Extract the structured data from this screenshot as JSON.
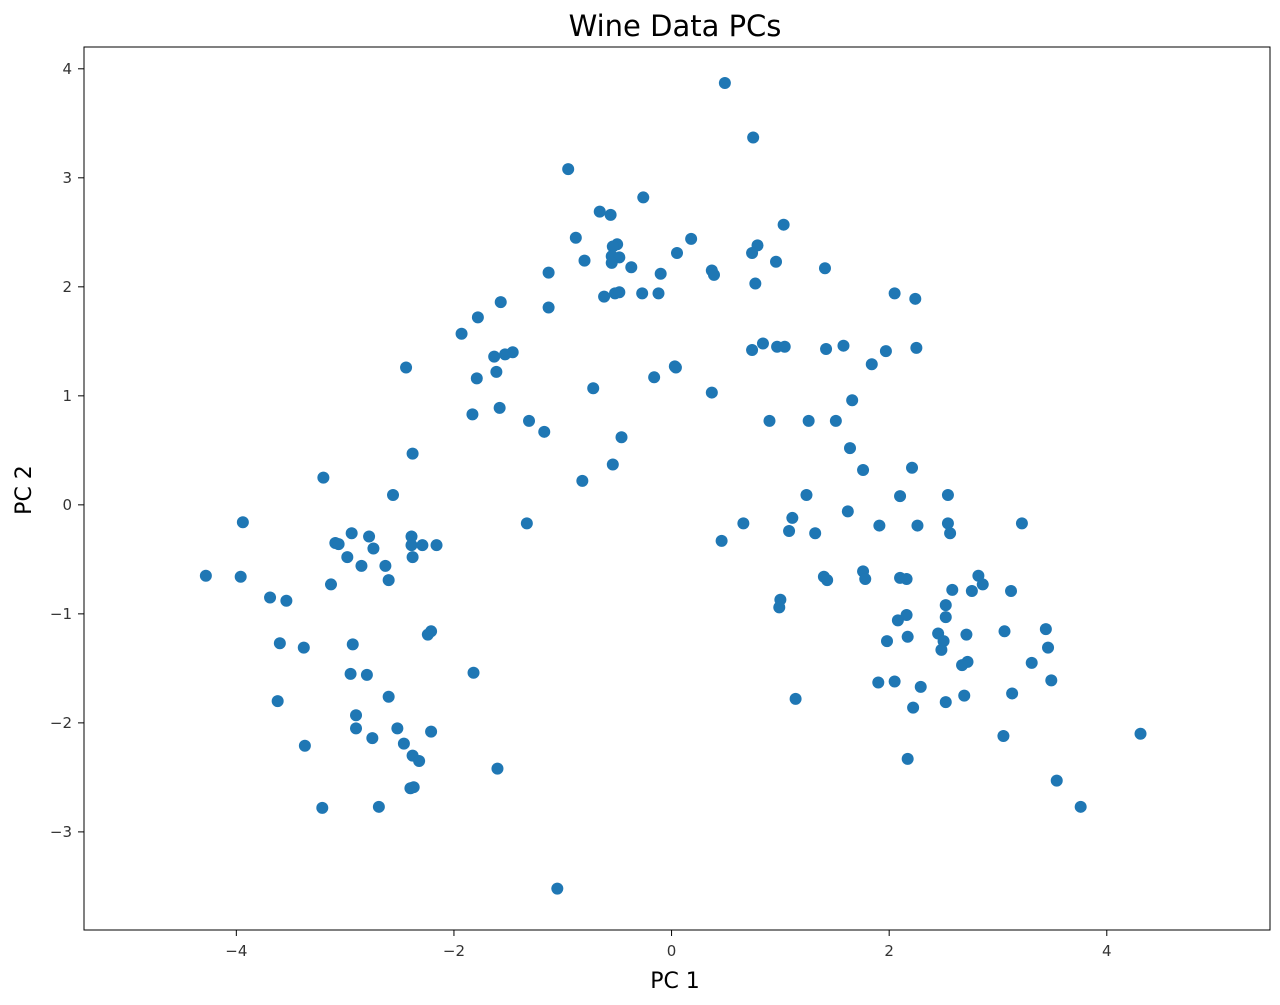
{
  "chart_data": {
    "type": "scatter",
    "title": "Wine Data PCs",
    "xlabel": "PC 1",
    "ylabel": "PC 2",
    "xlim": [
      -5.4,
      5.5
    ],
    "ylim": [
      -3.9,
      4.2
    ],
    "xticks": [
      -4,
      -2,
      0,
      2,
      4
    ],
    "yticks": [
      -3,
      -2,
      -1,
      0,
      1,
      2,
      3,
      4
    ],
    "xtick_labels": [
      "−4",
      "−2",
      "0",
      "2",
      "4"
    ],
    "ytick_labels": [
      "−3",
      "−2",
      "−1",
      "0",
      "1",
      "2",
      "3",
      "4"
    ],
    "grid": false,
    "marker_color": "#1f77b4",
    "points": [
      [
        0.49,
        3.87
      ],
      [
        0.75,
        3.37
      ],
      [
        -0.95,
        3.08
      ],
      [
        -0.26,
        2.82
      ],
      [
        -0.66,
        2.69
      ],
      [
        -0.56,
        2.66
      ],
      [
        1.03,
        2.57
      ],
      [
        -0.88,
        2.45
      ],
      [
        0.18,
        2.44
      ],
      [
        -0.5,
        2.39
      ],
      [
        0.79,
        2.38
      ],
      [
        -0.54,
        2.37
      ],
      [
        0.74,
        2.31
      ],
      [
        0.05,
        2.31
      ],
      [
        -0.55,
        2.28
      ],
      [
        -0.48,
        2.27
      ],
      [
        -0.8,
        2.24
      ],
      [
        -0.55,
        2.22
      ],
      [
        0.96,
        2.23
      ],
      [
        -0.37,
        2.18
      ],
      [
        1.41,
        2.17
      ],
      [
        0.37,
        2.15
      ],
      [
        -1.13,
        2.13
      ],
      [
        -0.1,
        2.12
      ],
      [
        0.39,
        2.11
      ],
      [
        0.77,
        2.03
      ],
      [
        -0.52,
        1.94
      ],
      [
        -0.48,
        1.95
      ],
      [
        -0.27,
        1.94
      ],
      [
        -0.12,
        1.94
      ],
      [
        -0.62,
        1.91
      ],
      [
        2.05,
        1.94
      ],
      [
        2.24,
        1.89
      ],
      [
        -1.57,
        1.86
      ],
      [
        -1.13,
        1.81
      ],
      [
        -1.78,
        1.72
      ],
      [
        -1.93,
        1.57
      ],
      [
        1.58,
        1.46
      ],
      [
        0.84,
        1.48
      ],
      [
        0.97,
        1.45
      ],
      [
        1.04,
        1.45
      ],
      [
        1.42,
        1.43
      ],
      [
        0.74,
        1.42
      ],
      [
        2.25,
        1.44
      ],
      [
        1.97,
        1.41
      ],
      [
        -1.46,
        1.4
      ],
      [
        -1.53,
        1.38
      ],
      [
        -1.63,
        1.36
      ],
      [
        1.84,
        1.29
      ],
      [
        -2.44,
        1.26
      ],
      [
        0.03,
        1.27
      ],
      [
        0.04,
        1.26
      ],
      [
        -1.61,
        1.22
      ],
      [
        -1.79,
        1.16
      ],
      [
        -0.16,
        1.17
      ],
      [
        -0.72,
        1.07
      ],
      [
        0.37,
        1.03
      ],
      [
        1.66,
        0.96
      ],
      [
        -1.58,
        0.89
      ],
      [
        -1.83,
        0.83
      ],
      [
        0.9,
        0.77
      ],
      [
        1.26,
        0.77
      ],
      [
        1.51,
        0.77
      ],
      [
        -1.31,
        0.77
      ],
      [
        -1.17,
        0.67
      ],
      [
        -0.46,
        0.62
      ],
      [
        1.64,
        0.52
      ],
      [
        -2.38,
        0.47
      ],
      [
        -0.54,
        0.37
      ],
      [
        2.21,
        0.34
      ],
      [
        1.76,
        0.32
      ],
      [
        -3.2,
        0.25
      ],
      [
        -0.82,
        0.22
      ],
      [
        -2.56,
        0.09
      ],
      [
        1.24,
        0.09
      ],
      [
        2.1,
        0.08
      ],
      [
        2.54,
        0.09
      ],
      [
        1.62,
        -0.06
      ],
      [
        1.11,
        -0.12
      ],
      [
        -3.94,
        -0.16
      ],
      [
        -1.33,
        -0.17
      ],
      [
        0.66,
        -0.17
      ],
      [
        1.91,
        -0.19
      ],
      [
        2.26,
        -0.19
      ],
      [
        2.54,
        -0.17
      ],
      [
        3.22,
        -0.17
      ],
      [
        1.08,
        -0.24
      ],
      [
        1.32,
        -0.26
      ],
      [
        2.56,
        -0.26
      ],
      [
        -2.94,
        -0.26
      ],
      [
        -2.78,
        -0.29
      ],
      [
        -2.39,
        -0.29
      ],
      [
        -3.09,
        -0.35
      ],
      [
        -3.06,
        -0.36
      ],
      [
        0.46,
        -0.33
      ],
      [
        -2.39,
        -0.37
      ],
      [
        -2.29,
        -0.37
      ],
      [
        -2.16,
        -0.37
      ],
      [
        -2.74,
        -0.4
      ],
      [
        -2.98,
        -0.48
      ],
      [
        -2.38,
        -0.48
      ],
      [
        -2.85,
        -0.56
      ],
      [
        -2.63,
        -0.56
      ],
      [
        -4.28,
        -0.65
      ],
      [
        -3.96,
        -0.66
      ],
      [
        1.76,
        -0.61
      ],
      [
        1.4,
        -0.66
      ],
      [
        1.43,
        -0.69
      ],
      [
        1.78,
        -0.68
      ],
      [
        2.1,
        -0.67
      ],
      [
        2.16,
        -0.68
      ],
      [
        2.82,
        -0.65
      ],
      [
        -2.6,
        -0.69
      ],
      [
        -3.13,
        -0.73
      ],
      [
        2.86,
        -0.73
      ],
      [
        2.58,
        -0.78
      ],
      [
        2.76,
        -0.79
      ],
      [
        3.12,
        -0.79
      ],
      [
        -3.69,
        -0.85
      ],
      [
        -3.54,
        -0.88
      ],
      [
        1.0,
        -0.87
      ],
      [
        0.99,
        -0.94
      ],
      [
        2.52,
        -0.92
      ],
      [
        2.16,
        -1.01
      ],
      [
        2.08,
        -1.06
      ],
      [
        2.52,
        -1.03
      ],
      [
        3.44,
        -1.14
      ],
      [
        3.06,
        -1.16
      ],
      [
        -2.21,
        -1.16
      ],
      [
        -2.24,
        -1.19
      ],
      [
        2.45,
        -1.18
      ],
      [
        2.71,
        -1.19
      ],
      [
        2.17,
        -1.21
      ],
      [
        1.98,
        -1.25
      ],
      [
        2.5,
        -1.25
      ],
      [
        -3.6,
        -1.27
      ],
      [
        -2.93,
        -1.28
      ],
      [
        -3.38,
        -1.31
      ],
      [
        3.46,
        -1.31
      ],
      [
        2.48,
        -1.33
      ],
      [
        2.72,
        -1.44
      ],
      [
        2.67,
        -1.47
      ],
      [
        3.31,
        -1.45
      ],
      [
        -1.82,
        -1.54
      ],
      [
        -2.95,
        -1.55
      ],
      [
        -2.8,
        -1.56
      ],
      [
        3.49,
        -1.61
      ],
      [
        1.9,
        -1.63
      ],
      [
        2.05,
        -1.62
      ],
      [
        2.29,
        -1.67
      ],
      [
        3.13,
        -1.73
      ],
      [
        -2.6,
        -1.76
      ],
      [
        2.69,
        -1.75
      ],
      [
        1.14,
        -1.78
      ],
      [
        -3.62,
        -1.8
      ],
      [
        2.52,
        -1.81
      ],
      [
        2.22,
        -1.86
      ],
      [
        -2.9,
        -1.93
      ],
      [
        -2.52,
        -2.05
      ],
      [
        -2.9,
        -2.05
      ],
      [
        -2.75,
        -2.14
      ],
      [
        -2.21,
        -2.08
      ],
      [
        3.05,
        -2.12
      ],
      [
        4.31,
        -2.1
      ],
      [
        -2.46,
        -2.19
      ],
      [
        -3.37,
        -2.21
      ],
      [
        -2.38,
        -2.3
      ],
      [
        -2.32,
        -2.35
      ],
      [
        2.17,
        -2.33
      ],
      [
        -1.6,
        -2.42
      ],
      [
        3.54,
        -2.53
      ],
      [
        -2.37,
        -2.59
      ],
      [
        -2.4,
        -2.6
      ],
      [
        -3.21,
        -2.78
      ],
      [
        -2.69,
        -2.77
      ],
      [
        3.76,
        -2.77
      ],
      [
        -1.05,
        -3.52
      ]
    ]
  }
}
